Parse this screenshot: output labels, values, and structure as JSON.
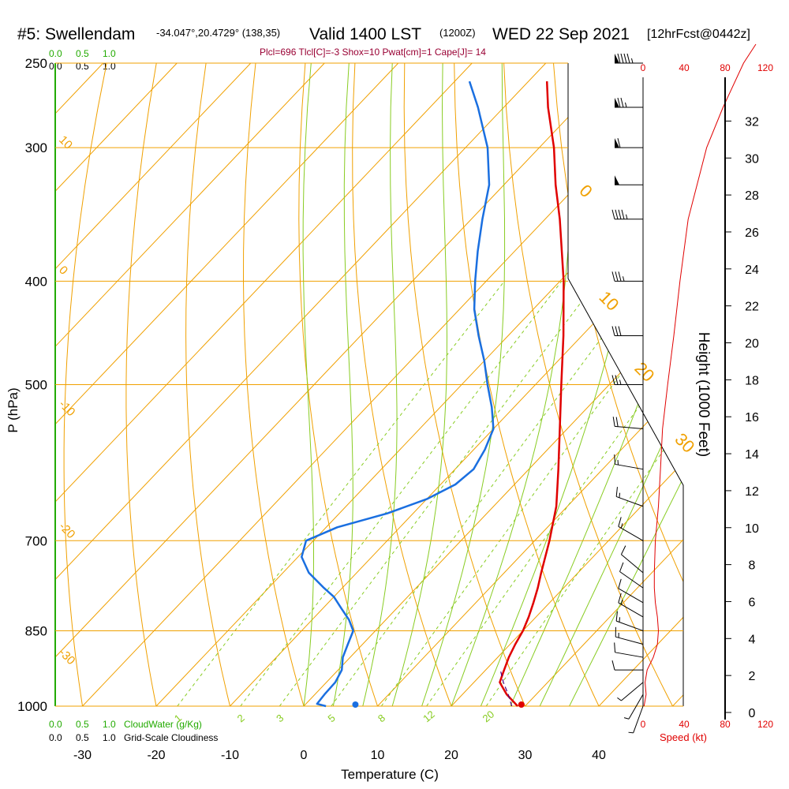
{
  "header": {
    "station": "#5: Swellendam",
    "coords": "-34.047°,20.4729° (138,35)",
    "valid": "Valid 1400 LST",
    "zulu": "(1200Z)",
    "date": "WED 22 Sep 2021",
    "fcst": "[12hrFcst@0442z]",
    "params": "Plcl=696 Tlcl[C]=-3 Shox=10 Pwat[cm]=1 Cape[J]= 14"
  },
  "scales": {
    "cloud_water_top": [
      "0.0",
      "0.5",
      "1.0"
    ],
    "cloudiness_top": [
      "0.0",
      "0.5",
      "1.0"
    ],
    "cloud_water_bottom": [
      "0.0",
      "0.5",
      "1.0"
    ],
    "cloud_water_label": "CloudWater (g/Kg)",
    "cloudiness_bottom": [
      "0.0",
      "0.5",
      "1.0"
    ],
    "cloudiness_label": "Grid-Scale Cloudiness",
    "speed_top": [
      "0",
      "40",
      "80",
      "120"
    ],
    "speed_bottom": [
      "0",
      "40",
      "80",
      "120"
    ],
    "speed_label": "Speed (kt)"
  },
  "chart_data": {
    "type": "skew-t",
    "xlabel": "Temperature (C)",
    "ylabel": "P (hPa)",
    "y2label": "Height (1000 Feet)",
    "pressure_ticks": [
      250,
      300,
      400,
      500,
      700,
      850,
      1000
    ],
    "temperature_ticks": [
      -30,
      -20,
      -10,
      0,
      10,
      20,
      30,
      40
    ],
    "height_ticks": [
      0,
      2,
      4,
      6,
      8,
      10,
      12,
      14,
      16,
      18,
      20,
      22,
      24,
      26,
      28,
      30,
      32
    ],
    "speed_ticks": [
      0,
      40,
      80,
      120
    ],
    "isotherm_labels": [
      "10",
      "0",
      "-10",
      "-20",
      "-30",
      "0",
      "10",
      "20",
      "30"
    ],
    "mixing_ratio_labels": [
      "1",
      "2",
      "3",
      "5",
      "8",
      "12",
      "20"
    ],
    "temperature_profile": [
      {
        "p": 1000,
        "t": 29.0
      },
      {
        "p": 975,
        "t": 26.0
      },
      {
        "p": 950,
        "t": 23.5
      },
      {
        "p": 925,
        "t": 22.5
      },
      {
        "p": 900,
        "t": 21.5
      },
      {
        "p": 875,
        "t": 20.7
      },
      {
        "p": 850,
        "t": 20.0
      },
      {
        "p": 825,
        "t": 19.0
      },
      {
        "p": 800,
        "t": 17.8
      },
      {
        "p": 775,
        "t": 16.5
      },
      {
        "p": 750,
        "t": 15.0
      },
      {
        "p": 700,
        "t": 12.0
      },
      {
        "p": 650,
        "t": 8.5
      },
      {
        "p": 600,
        "t": 4.0
      },
      {
        "p": 550,
        "t": -1.0
      },
      {
        "p": 500,
        "t": -6.5
      },
      {
        "p": 450,
        "t": -12.5
      },
      {
        "p": 400,
        "t": -19.5
      },
      {
        "p": 350,
        "t": -28.0
      },
      {
        "p": 325,
        "t": -33.0
      },
      {
        "p": 300,
        "t": -38.0
      },
      {
        "p": 275,
        "t": -44.0
      },
      {
        "p": 260,
        "t": -47.5
      }
    ],
    "dewpoint_profile": [
      {
        "p": 1000,
        "t": 3.0
      },
      {
        "p": 995,
        "t": 1.5
      },
      {
        "p": 975,
        "t": 1.3
      },
      {
        "p": 950,
        "t": 1.2
      },
      {
        "p": 925,
        "t": 0.5
      },
      {
        "p": 900,
        "t": -1.0
      },
      {
        "p": 875,
        "t": -2.0
      },
      {
        "p": 850,
        "t": -3.0
      },
      {
        "p": 830,
        "t": -5.0
      },
      {
        "p": 810,
        "t": -7.5
      },
      {
        "p": 790,
        "t": -10.0
      },
      {
        "p": 775,
        "t": -12.5
      },
      {
        "p": 750,
        "t": -16.5
      },
      {
        "p": 725,
        "t": -19.5
      },
      {
        "p": 700,
        "t": -21.0
      },
      {
        "p": 680,
        "t": -18.5
      },
      {
        "p": 660,
        "t": -13.5
      },
      {
        "p": 640,
        "t": -10.0
      },
      {
        "p": 620,
        "t": -8.0
      },
      {
        "p": 600,
        "t": -7.5
      },
      {
        "p": 575,
        "t": -8.5
      },
      {
        "p": 550,
        "t": -10.0
      },
      {
        "p": 525,
        "t": -13.0
      },
      {
        "p": 500,
        "t": -16.5
      },
      {
        "p": 475,
        "t": -20.0
      },
      {
        "p": 450,
        "t": -24.0
      },
      {
        "p": 425,
        "t": -28.0
      },
      {
        "p": 400,
        "t": -31.5
      },
      {
        "p": 375,
        "t": -35.0
      },
      {
        "p": 350,
        "t": -38.5
      },
      {
        "p": 325,
        "t": -42.0
      },
      {
        "p": 300,
        "t": -47.0
      },
      {
        "p": 275,
        "t": -53.5
      },
      {
        "p": 260,
        "t": -58.0
      }
    ],
    "parcel_path": [
      {
        "p": 1000,
        "t": 28.2
      },
      {
        "p": 975,
        "t": 26.2
      },
      {
        "p": 950,
        "t": 24.0
      },
      {
        "p": 925,
        "t": 22.0
      }
    ],
    "surface_temperature": 29.5,
    "surface_dewpoint": 7.0,
    "wind_speed_profile": [
      {
        "p": 1000,
        "kt": 1
      },
      {
        "p": 975,
        "kt": 3
      },
      {
        "p": 950,
        "kt": 2
      },
      {
        "p": 925,
        "kt": 4
      },
      {
        "p": 900,
        "kt": 10
      },
      {
        "p": 875,
        "kt": 14
      },
      {
        "p": 850,
        "kt": 15
      },
      {
        "p": 825,
        "kt": 14
      },
      {
        "p": 800,
        "kt": 12
      },
      {
        "p": 775,
        "kt": 11
      },
      {
        "p": 750,
        "kt": 11
      },
      {
        "p": 700,
        "kt": 12
      },
      {
        "p": 650,
        "kt": 15
      },
      {
        "p": 600,
        "kt": 17
      },
      {
        "p": 550,
        "kt": 19
      },
      {
        "p": 500,
        "kt": 24
      },
      {
        "p": 450,
        "kt": 30
      },
      {
        "p": 400,
        "kt": 36
      },
      {
        "p": 350,
        "kt": 44
      },
      {
        "p": 300,
        "kt": 62
      },
      {
        "p": 275,
        "kt": 78
      },
      {
        "p": 250,
        "kt": 98
      },
      {
        "p": 240,
        "kt": 110
      }
    ],
    "wind_barbs": [
      {
        "p": 1000,
        "dir": 200,
        "kt": 5
      },
      {
        "p": 975,
        "dir": 210,
        "kt": 5
      },
      {
        "p": 950,
        "dir": 230,
        "kt": 5
      },
      {
        "p": 925,
        "dir": 270,
        "kt": 10
      },
      {
        "p": 900,
        "dir": 280,
        "kt": 10
      },
      {
        "p": 875,
        "dir": 285,
        "kt": 15
      },
      {
        "p": 850,
        "dir": 290,
        "kt": 15
      },
      {
        "p": 825,
        "dir": 300,
        "kt": 15
      },
      {
        "p": 800,
        "dir": 300,
        "kt": 10
      },
      {
        "p": 775,
        "dir": 305,
        "kt": 10
      },
      {
        "p": 750,
        "dir": 310,
        "kt": 10
      },
      {
        "p": 700,
        "dir": 300,
        "kt": 15
      },
      {
        "p": 650,
        "dir": 290,
        "kt": 15
      },
      {
        "p": 600,
        "dir": 280,
        "kt": 15
      },
      {
        "p": 550,
        "dir": 275,
        "kt": 20
      },
      {
        "p": 500,
        "dir": 270,
        "kt": 25
      },
      {
        "p": 450,
        "dir": 270,
        "kt": 30
      },
      {
        "p": 400,
        "dir": 270,
        "kt": 35
      },
      {
        "p": 350,
        "dir": 270,
        "kt": 45
      },
      {
        "p": 325,
        "dir": 270,
        "kt": 50
      },
      {
        "p": 300,
        "dir": 270,
        "kt": 60
      },
      {
        "p": 275,
        "dir": 270,
        "kt": 75
      },
      {
        "p": 250,
        "dir": 270,
        "kt": 95
      }
    ]
  }
}
